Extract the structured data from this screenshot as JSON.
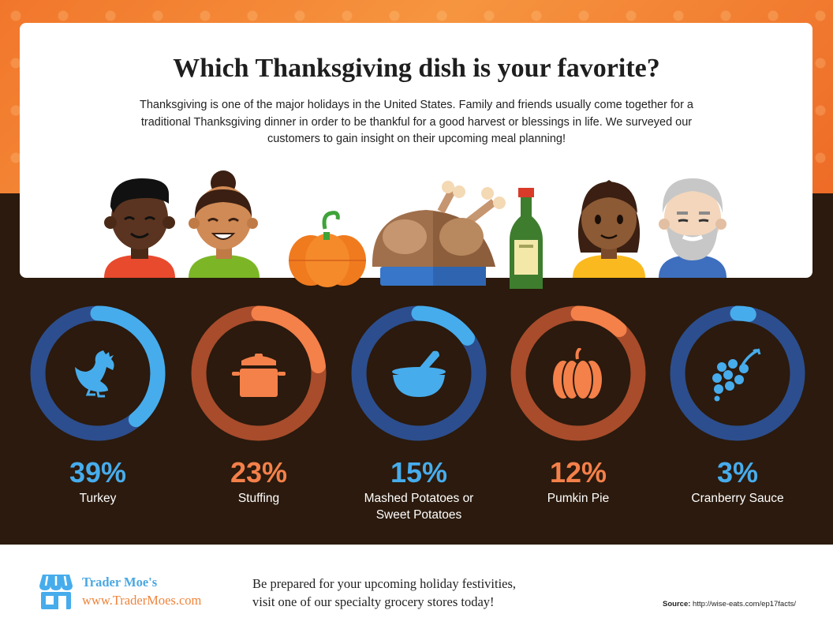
{
  "title": "Which Thanksgiving dish is your favorite?",
  "intro": "Thanksgiving is one of the major holidays in the United States. Family and friends usually come together for a traditional Thanksgiving dinner in order to be thankful for a good harvest or blessings in life. We surveyed our customers to gain insight on their upcoming meal planning!",
  "chart_data": {
    "type": "donut",
    "categories": [
      "Turkey",
      "Stuffing",
      "Mashed Potatoes or Sweet Potatoes",
      "Pumkin Pie",
      "Cranberry Sauce"
    ],
    "values": [
      39,
      23,
      15,
      12,
      3
    ],
    "unit": "%",
    "display_values": [
      "39%",
      "23%",
      "15%",
      "12%",
      "3%"
    ],
    "labels": [
      [
        "Turkey"
      ],
      [
        "Stuffing"
      ],
      [
        "Mashed Potatoes or",
        "Sweet Potatoes"
      ],
      [
        "Pumkin Pie"
      ],
      [
        "Cranberry Sauce"
      ]
    ],
    "icons": [
      "chicken-icon",
      "cooking-pot-icon",
      "mortar-pestle-icon",
      "pumpkin-icon",
      "grapes-icon"
    ],
    "colors": {
      "blue_track": "#2c4e8e",
      "blue_fill": "#47acec",
      "orange_track": "#a84c2c",
      "orange_fill": "#f4804a"
    },
    "ring_styles": [
      "blue",
      "orange",
      "blue",
      "orange",
      "blue"
    ]
  },
  "footer": {
    "brand_name": "Trader Moe's",
    "brand_url": "www.TraderMoes.com",
    "cta_line1": "Be prepared for your upcoming holiday festivities,",
    "cta_line2": "visit one of our specialty grocery stores today!",
    "source_label": "Source:",
    "source_url": "http://wise-eats.com/ep17facts/"
  },
  "colors": {
    "background_dark": "#2b1a0d",
    "accent_orange": "#f0843c",
    "accent_blue": "#4aa8e2"
  }
}
